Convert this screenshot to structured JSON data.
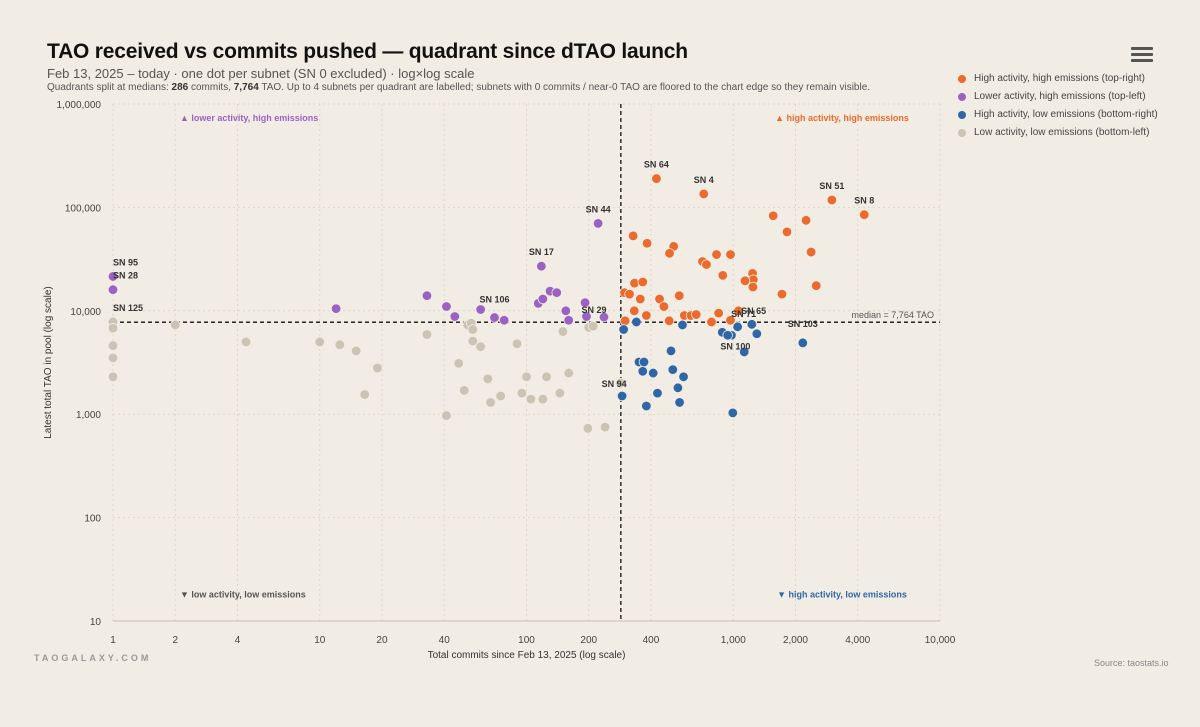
{
  "header": {
    "title": "TAO received vs commits pushed — quadrant since dTAO launch",
    "subtitle": "Feb 13, 2025 – today · one dot per subnet (SN 0 excluded) · log×log scale",
    "note_prefix": "Quadrants split at medians: ",
    "note_commits": "286",
    "note_mid1": " commits, ",
    "note_tao": "7,764",
    "note_suffix": " TAO. Up to 4 subnets per quadrant are labelled; subnets with 0 commits / near-0 TAO are floored to the chart edge so they remain visible."
  },
  "menu_icon": "hamburger-menu-icon",
  "legend": [
    {
      "label": "High activity, high emissions (top-right)",
      "color": "#ec6a2c"
    },
    {
      "label": "Lower activity, high emissions (top-left)",
      "color": "#9b62c3"
    },
    {
      "label": "High activity, low emissions (bottom-right)",
      "color": "#2e66a8"
    },
    {
      "label": "Low activity, low emissions (bottom-left)",
      "color": "#cbc3b3"
    }
  ],
  "footer": {
    "watermark": "TAOGALAXY.COM",
    "source": "Source: taostats.io"
  },
  "chart_data": {
    "type": "scatter",
    "xscale": "log",
    "yscale": "log",
    "xlim": [
      1,
      10000
    ],
    "ylim": [
      10,
      1000000
    ],
    "xlabel": "Total commits since Feb 13, 2025 (log scale)",
    "ylabel": "Latest total TAO in pool (log scale)",
    "x_ticks": [
      {
        "v": 1,
        "label": "1"
      },
      {
        "v": 2,
        "label": "2"
      },
      {
        "v": 4,
        "label": "4"
      },
      {
        "v": 10,
        "label": "10"
      },
      {
        "v": 20,
        "label": "20"
      },
      {
        "v": 40,
        "label": "40"
      },
      {
        "v": 100,
        "label": "100"
      },
      {
        "v": 200,
        "label": "200"
      },
      {
        "v": 400,
        "label": "400"
      },
      {
        "v": 1000,
        "label": "1,000"
      },
      {
        "v": 2000,
        "label": "2,000"
      },
      {
        "v": 4000,
        "label": "4,000"
      },
      {
        "v": 10000,
        "label": "10,000"
      }
    ],
    "y_ticks": [
      {
        "v": 10,
        "label": "10"
      },
      {
        "v": 100,
        "label": "100"
      },
      {
        "v": 1000,
        "label": "1,000"
      },
      {
        "v": 10000,
        "label": "10,000"
      },
      {
        "v": 100000,
        "label": "100,000"
      },
      {
        "v": 1000000,
        "label": "1,000,000"
      }
    ],
    "median_x": 286,
    "median_y": 7764,
    "median_label": "median = 7,764 TAO",
    "grid": true,
    "legend_position": "top-right",
    "quadrant_annotations": [
      {
        "text": "▲ lower activity, high emissions",
        "x": 1.55,
        "y": 750000,
        "color": "#9b62c3"
      },
      {
        "text": "▲ high activity, high emissions",
        "x": 1050,
        "y": 750000,
        "color": "#ec6a2c"
      },
      {
        "text": "▼ low activity, low emissions",
        "x": 1.55,
        "y": 20000,
        "color": "#555555",
        "ypos": 18.5
      },
      {
        "text": "▼ high activity, low emissions",
        "x": 1050,
        "y": 20000,
        "color": "#2e66a8",
        "ypos": 18.5
      }
    ],
    "series": [
      {
        "name": "High activity, high emissions (top-right)",
        "color": "#ec6a2c",
        "points": [
          [
            425,
            190000,
            "SN 64"
          ],
          [
            720,
            135000,
            "SN 4"
          ],
          [
            3000,
            118000,
            "SN 51"
          ],
          [
            4300,
            85000,
            "SN 8"
          ],
          [
            1560,
            83000,
            ""
          ],
          [
            1820,
            58000,
            ""
          ],
          [
            2250,
            75000,
            ""
          ],
          [
            2380,
            37000,
            ""
          ],
          [
            2520,
            17500,
            ""
          ],
          [
            1720,
            14500,
            ""
          ],
          [
            328,
            53000,
            ""
          ],
          [
            383,
            45000,
            ""
          ],
          [
            515,
            42000,
            ""
          ],
          [
            492,
            36000,
            ""
          ],
          [
            710,
            30000,
            ""
          ],
          [
            742,
            28000,
            ""
          ],
          [
            830,
            35000,
            ""
          ],
          [
            970,
            35000,
            ""
          ],
          [
            890,
            22000,
            ""
          ],
          [
            1240,
            23000,
            ""
          ],
          [
            1250,
            20000,
            ""
          ],
          [
            1140,
            19500,
            ""
          ],
          [
            1245,
            17000,
            ""
          ],
          [
            298,
            15000,
            ""
          ],
          [
            315,
            14500,
            ""
          ],
          [
            333,
            18500,
            ""
          ],
          [
            365,
            19000,
            ""
          ],
          [
            355,
            13000,
            ""
          ],
          [
            440,
            13000,
            ""
          ],
          [
            462,
            11000,
            ""
          ],
          [
            548,
            14000,
            ""
          ],
          [
            332,
            10000,
            ""
          ],
          [
            380,
            9000,
            ""
          ],
          [
            490,
            8000,
            ""
          ],
          [
            580,
            9000,
            ""
          ],
          [
            625,
            9000,
            ""
          ],
          [
            662,
            9200,
            ""
          ],
          [
            785,
            7800,
            ""
          ],
          [
            850,
            9500,
            ""
          ],
          [
            970,
            8100,
            ""
          ],
          [
            1060,
            10000,
            ""
          ],
          [
            300,
            8000,
            ""
          ]
        ]
      },
      {
        "name": "Lower activity, high emissions (top-left)",
        "color": "#9b62c3",
        "points": [
          [
            222,
            70000,
            "SN 44"
          ],
          [
            118,
            27000,
            "SN 17"
          ],
          [
            1,
            21500,
            "SN 95"
          ],
          [
            1,
            16000,
            "SN 28"
          ],
          [
            12,
            10500,
            ""
          ],
          [
            33,
            14000,
            ""
          ],
          [
            41,
            11000,
            ""
          ],
          [
            45,
            8800,
            ""
          ],
          [
            60,
            10300,
            ""
          ],
          [
            70,
            8600,
            ""
          ],
          [
            78,
            8100,
            ""
          ],
          [
            114,
            11800,
            ""
          ],
          [
            120,
            13000,
            ""
          ],
          [
            130,
            15500,
            ""
          ],
          [
            140,
            15000,
            ""
          ],
          [
            155,
            10000,
            ""
          ],
          [
            160,
            8100,
            ""
          ],
          [
            192,
            12000,
            ""
          ],
          [
            195,
            8800,
            ""
          ],
          [
            237,
            8700,
            ""
          ]
        ]
      },
      {
        "name": "High activity, low emissions (bottom-right)",
        "color": "#2e66a8",
        "points": [
          [
            1050,
            7000,
            "SN 71"
          ],
          [
            980,
            5800,
            "SN 100"
          ],
          [
            2170,
            4900,
            "SN 103"
          ],
          [
            290,
            1500,
            "SN 94"
          ],
          [
            295,
            6600,
            ""
          ],
          [
            340,
            7800,
            ""
          ],
          [
            350,
            3200,
            ""
          ],
          [
            365,
            2600,
            ""
          ],
          [
            370,
            3200,
            ""
          ],
          [
            380,
            1200,
            ""
          ],
          [
            410,
            2500,
            ""
          ],
          [
            430,
            1600,
            ""
          ],
          [
            500,
            4100,
            ""
          ],
          [
            510,
            2700,
            ""
          ],
          [
            540,
            1800,
            ""
          ],
          [
            550,
            1300,
            ""
          ],
          [
            575,
            2300,
            ""
          ],
          [
            568,
            7300,
            ""
          ],
          [
            885,
            6200,
            ""
          ],
          [
            940,
            5800,
            ""
          ],
          [
            995,
            1030,
            ""
          ],
          [
            1050,
            7000,
            ""
          ],
          [
            1130,
            4000,
            ""
          ],
          [
            1300,
            6000,
            ""
          ],
          [
            1230,
            7400,
            ""
          ]
        ]
      },
      {
        "name": "Low activity, low emissions (bottom-left)",
        "color": "#cbc3b3",
        "points": [
          [
            1,
            7800,
            "SN 125"
          ],
          [
            1,
            6800,
            ""
          ],
          [
            1,
            4600,
            ""
          ],
          [
            1,
            3500,
            ""
          ],
          [
            1,
            2300,
            ""
          ],
          [
            2,
            7300,
            ""
          ],
          [
            4.4,
            5000,
            ""
          ],
          [
            10,
            5000,
            ""
          ],
          [
            12.5,
            4700,
            ""
          ],
          [
            15,
            4100,
            ""
          ],
          [
            16.5,
            1550,
            ""
          ],
          [
            19,
            2800,
            ""
          ],
          [
            33,
            5900,
            ""
          ],
          [
            41,
            970,
            ""
          ],
          [
            47,
            3100,
            ""
          ],
          [
            50,
            1700,
            ""
          ],
          [
            52,
            7300,
            ""
          ],
          [
            54,
            7600,
            ""
          ],
          [
            55,
            6600,
            ""
          ],
          [
            55,
            5100,
            ""
          ],
          [
            60,
            4500,
            ""
          ],
          [
            65,
            2200,
            ""
          ],
          [
            67,
            1300,
            ""
          ],
          [
            75,
            1500,
            ""
          ],
          [
            90,
            4800,
            ""
          ],
          [
            95,
            1600,
            ""
          ],
          [
            100,
            2300,
            ""
          ],
          [
            105,
            1400,
            ""
          ],
          [
            120,
            1400,
            ""
          ],
          [
            125,
            2300,
            ""
          ],
          [
            145,
            1600,
            ""
          ],
          [
            150,
            6300,
            ""
          ],
          [
            160,
            2500,
            ""
          ],
          [
            198,
            730,
            ""
          ],
          [
            200,
            6900,
            ""
          ],
          [
            210,
            7100,
            ""
          ],
          [
            240,
            750,
            ""
          ],
          [
            285,
            2000,
            ""
          ]
        ]
      }
    ]
  }
}
